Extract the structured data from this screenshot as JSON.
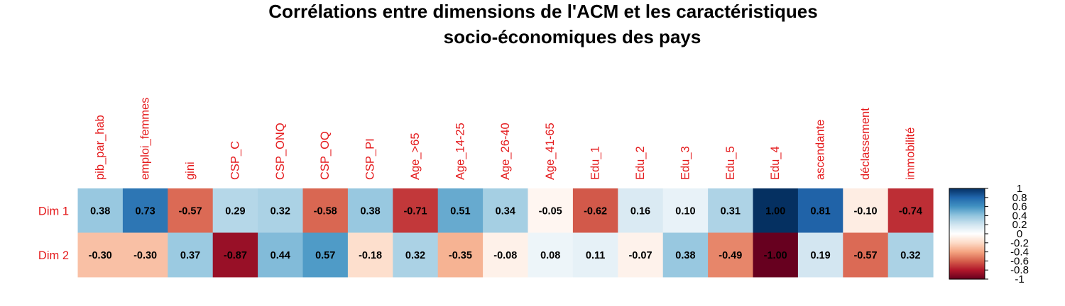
{
  "chart_data": {
    "type": "heatmap",
    "title_lines": [
      "Corrélations entre dimensions de l'ACM et les caractéristiques",
      "socio-économiques des pays"
    ],
    "columns": [
      "pib_par_hab",
      "emploi_femmes",
      "gini",
      "CSP_C",
      "CSP_ONQ",
      "CSP_OQ",
      "CSP_PI",
      "Age_>65",
      "Age_14-25",
      "Age_26-40",
      "Age_41-65",
      "Edu_1",
      "Edu_2",
      "Edu_3",
      "Edu_5",
      "Edu_4",
      "ascendante",
      "déclassement",
      "immobilité"
    ],
    "rows": [
      "Dim 1",
      "Dim 2"
    ],
    "values": [
      [
        0.38,
        0.73,
        -0.57,
        0.29,
        0.32,
        -0.58,
        0.38,
        -0.71,
        0.51,
        0.34,
        -0.05,
        -0.62,
        0.16,
        0.1,
        0.31,
        1.0,
        0.81,
        -0.1,
        -0.74
      ],
      [
        -0.3,
        -0.3,
        0.37,
        -0.87,
        0.44,
        0.57,
        -0.18,
        0.32,
        -0.35,
        -0.08,
        0.08,
        0.11,
        -0.07,
        0.38,
        -0.49,
        -1.0,
        0.19,
        -0.57,
        0.32
      ]
    ],
    "value_labels": [
      [
        "0.38",
        "0.73",
        "-0.57",
        "0.29",
        "0.32",
        "-0.58",
        "0.38",
        "-0.71",
        "0.51",
        "0.34",
        "-0.05",
        "-0.62",
        "0.16",
        "0.10",
        "0.31",
        "1.00",
        "0.81",
        "-0.10",
        "-0.74"
      ],
      [
        "-0.30",
        "-0.30",
        "0.37",
        "-0.87",
        "0.44",
        "0.57",
        "-0.18",
        "0.32",
        "-0.35",
        "-0.08",
        "0.08",
        "0.11",
        "-0.07",
        "0.38",
        "-0.49",
        "-1.00",
        "0.19",
        "-0.57",
        "0.32"
      ]
    ],
    "colorbar": {
      "range": [
        -1,
        1
      ],
      "ticks": [
        "1",
        "0.8",
        "0.6",
        "0.4",
        "0.2",
        "0",
        "-0.2",
        "-0.4",
        "-0.6",
        "-0.8",
        "-1"
      ],
      "tick_values": [
        1,
        0.8,
        0.6,
        0.4,
        0.2,
        0,
        -0.2,
        -0.4,
        -0.6,
        -0.8,
        -1
      ],
      "palette": [
        "#67001F",
        "#B2182B",
        "#D6604D",
        "#F4A582",
        "#FDDBC7",
        "#FFFFFF",
        "#D1E5F0",
        "#92C5DE",
        "#4393C3",
        "#2166AC",
        "#053061"
      ]
    },
    "label_color": "#E41A1C",
    "grid": false
  }
}
